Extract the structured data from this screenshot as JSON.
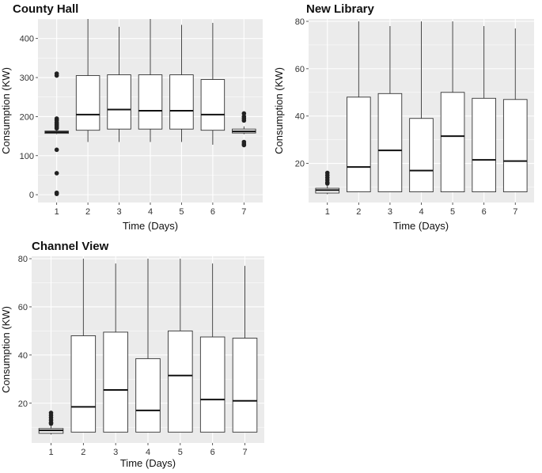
{
  "chart_data": [
    {
      "type": "boxplot",
      "title": "County Hall",
      "xlabel": "Time (Days)",
      "ylabel": "Consumption (KW)",
      "categories": [
        "1",
        "2",
        "3",
        "4",
        "5",
        "6",
        "7"
      ],
      "ylim": [
        -20,
        450
      ],
      "yticks": [
        0,
        100,
        200,
        300,
        400
      ],
      "grid": true,
      "boxes": [
        {
          "category": "1",
          "whisker_low": 155,
          "q1": 157,
          "median": 160,
          "q3": 163,
          "whisker_high": 166,
          "outliers": [
            310,
            305,
            195,
            192,
            190,
            185,
            183,
            180,
            178,
            175,
            172,
            170,
            115,
            55,
            5,
            2
          ]
        },
        {
          "category": "2",
          "whisker_low": 135,
          "q1": 165,
          "median": 205,
          "q3": 305,
          "whisker_high": 450,
          "outliers": []
        },
        {
          "category": "3",
          "whisker_low": 135,
          "q1": 168,
          "median": 218,
          "q3": 307,
          "whisker_high": 430,
          "outliers": []
        },
        {
          "category": "4",
          "whisker_low": 135,
          "q1": 168,
          "median": 215,
          "q3": 307,
          "whisker_high": 450,
          "outliers": []
        },
        {
          "category": "5",
          "whisker_low": 135,
          "q1": 168,
          "median": 215,
          "q3": 307,
          "whisker_high": 435,
          "outliers": []
        },
        {
          "category": "6",
          "whisker_low": 128,
          "q1": 165,
          "median": 205,
          "q3": 295,
          "whisker_high": 440,
          "outliers": []
        },
        {
          "category": "7",
          "whisker_low": 155,
          "q1": 158,
          "median": 162,
          "q3": 168,
          "whisker_high": 175,
          "outliers": [
            208,
            200,
            195,
            190,
            135,
            130,
            127
          ]
        }
      ]
    },
    {
      "type": "boxplot",
      "title": "New Library",
      "xlabel": "Time (Days)",
      "ylabel": "Consumption (KW)",
      "categories": [
        "1",
        "2",
        "3",
        "4",
        "5",
        "6",
        "7"
      ],
      "ylim": [
        3.5,
        81
      ],
      "yticks": [
        20,
        40,
        60,
        80
      ],
      "grid": true,
      "boxes": [
        {
          "category": "1",
          "whisker_low": 7,
          "q1": 7.5,
          "median": 8.7,
          "q3": 9.5,
          "whisker_high": 10.5,
          "outliers": [
            16,
            15,
            14,
            13,
            12,
            11.5
          ]
        },
        {
          "category": "2",
          "whisker_low": 8,
          "q1": 8,
          "median": 18.5,
          "q3": 48,
          "whisker_high": 80,
          "outliers": []
        },
        {
          "category": "3",
          "whisker_low": 8,
          "q1": 8,
          "median": 25.5,
          "q3": 49.5,
          "whisker_high": 78,
          "outliers": []
        },
        {
          "category": "4",
          "whisker_low": 8,
          "q1": 8,
          "median": 17,
          "q3": 39,
          "whisker_high": 80,
          "outliers": []
        },
        {
          "category": "5",
          "whisker_low": 8,
          "q1": 8,
          "median": 31.5,
          "q3": 50,
          "whisker_high": 80,
          "outliers": []
        },
        {
          "category": "6",
          "whisker_low": 8,
          "q1": 8,
          "median": 21.5,
          "q3": 47.5,
          "whisker_high": 78,
          "outliers": []
        },
        {
          "category": "7",
          "whisker_low": 8,
          "q1": 8,
          "median": 21,
          "q3": 47,
          "whisker_high": 77,
          "outliers": []
        }
      ]
    },
    {
      "type": "boxplot",
      "title": "Channel View",
      "xlabel": "Time (Days)",
      "ylabel": "Consumption (KW)",
      "categories": [
        "1",
        "2",
        "3",
        "4",
        "5",
        "6",
        "7"
      ],
      "ylim": [
        3.5,
        81
      ],
      "yticks": [
        20,
        40,
        60,
        80
      ],
      "grid": true,
      "boxes": [
        {
          "category": "1",
          "whisker_low": 7,
          "q1": 7.5,
          "median": 8.7,
          "q3": 9.5,
          "whisker_high": 10.5,
          "outliers": [
            16,
            15,
            14,
            13,
            12,
            11.5
          ]
        },
        {
          "category": "2",
          "whisker_low": 8,
          "q1": 8,
          "median": 18.5,
          "q3": 48,
          "whisker_high": 80,
          "outliers": []
        },
        {
          "category": "3",
          "whisker_low": 8,
          "q1": 8,
          "median": 25.5,
          "q3": 49.5,
          "whisker_high": 78,
          "outliers": []
        },
        {
          "category": "4",
          "whisker_low": 8,
          "q1": 8,
          "median": 17,
          "q3": 38.5,
          "whisker_high": 80,
          "outliers": []
        },
        {
          "category": "5",
          "whisker_low": 8,
          "q1": 8,
          "median": 31.5,
          "q3": 50,
          "whisker_high": 80,
          "outliers": []
        },
        {
          "category": "6",
          "whisker_low": 8,
          "q1": 8,
          "median": 21.5,
          "q3": 47.5,
          "whisker_high": 78,
          "outliers": []
        },
        {
          "category": "7",
          "whisker_low": 8,
          "q1": 8,
          "median": 21,
          "q3": 47,
          "whisker_high": 77,
          "outliers": []
        }
      ]
    }
  ],
  "colors": {
    "panel_background": "#ebebeb",
    "grid_major": "#ffffff",
    "box_fill": "#ffffff",
    "box_stroke": "#333333",
    "point": "#222222"
  }
}
